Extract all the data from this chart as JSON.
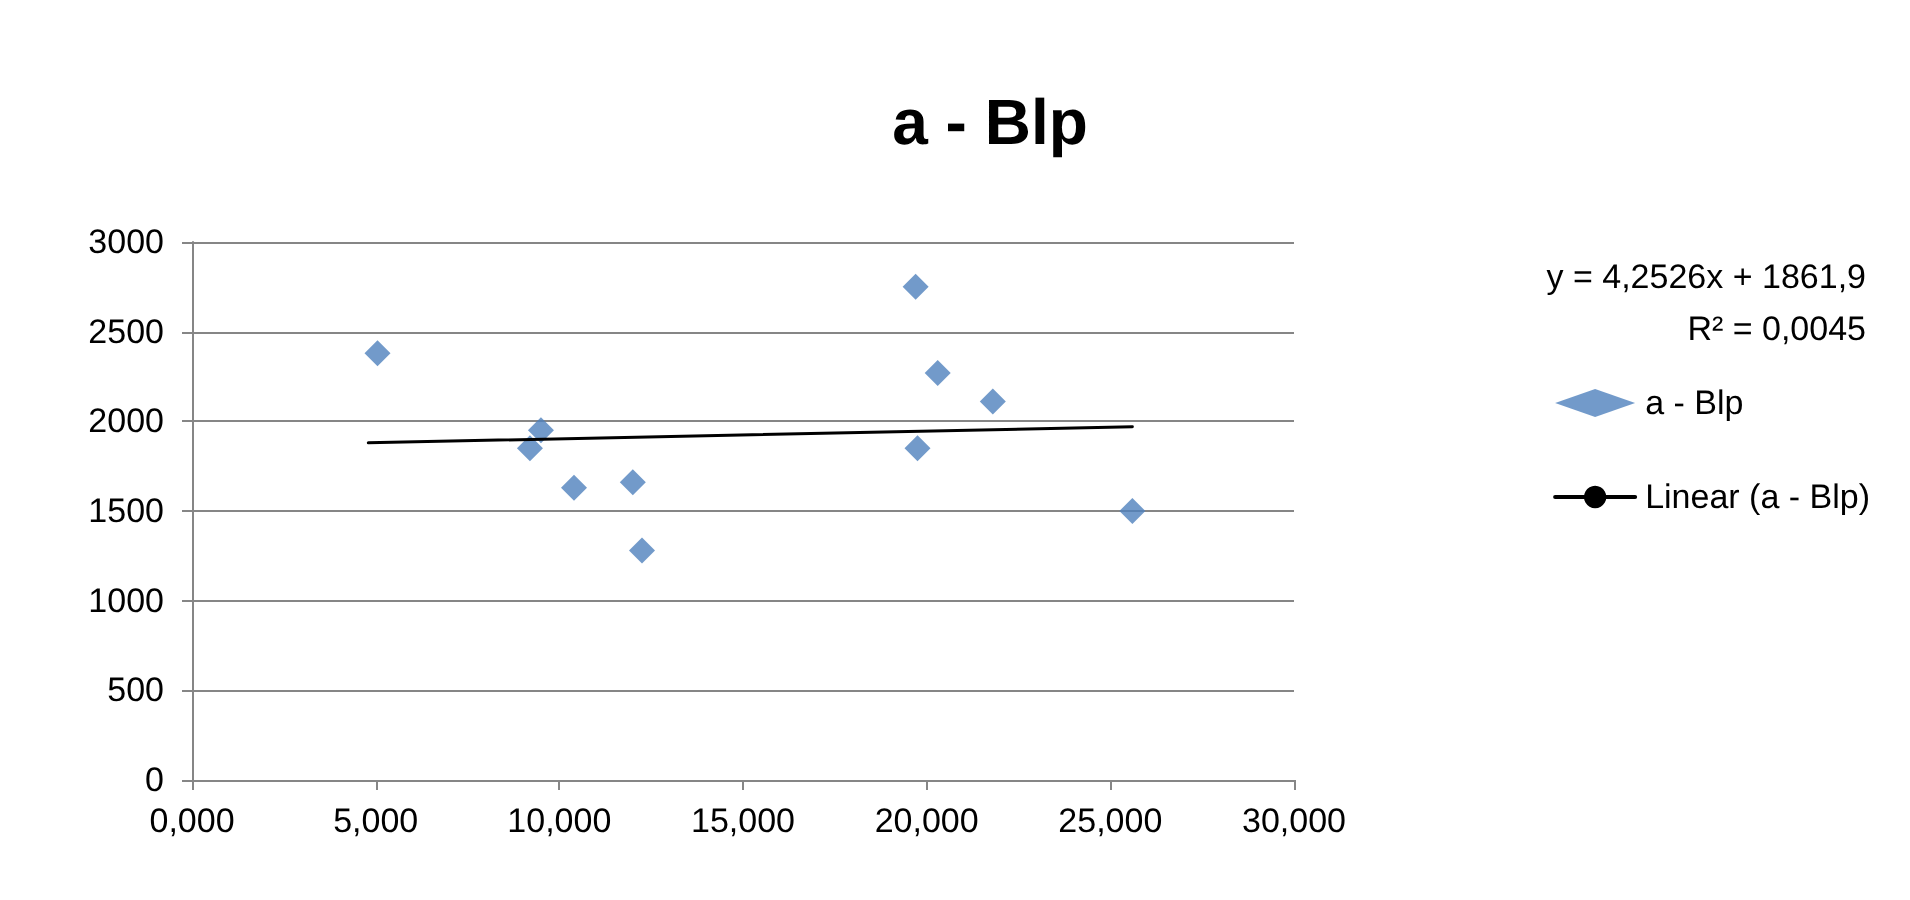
{
  "chart_data": {
    "type": "scatter",
    "title": "a - Blp",
    "annotations": [
      "y = 4,2526x + 1861,9",
      "R² = 0,0045"
    ],
    "xlim": [
      0,
      30
    ],
    "xticks": [
      {
        "value": 0,
        "label": "0,000"
      },
      {
        "value": 5,
        "label": "5,000"
      },
      {
        "value": 10,
        "label": "10,000"
      },
      {
        "value": 15,
        "label": "15,000"
      },
      {
        "value": 20,
        "label": "20,000"
      },
      {
        "value": 25,
        "label": "25,000"
      },
      {
        "value": 30,
        "label": "30,000"
      }
    ],
    "ylim": [
      0,
      3000
    ],
    "yticks": [
      0,
      500,
      1000,
      1500,
      2000,
      2500,
      3000
    ],
    "grid": "y",
    "legend": "right",
    "marker": "diamond",
    "series": [
      {
        "name": "a - Blp",
        "color": "#4f81bd",
        "x": [
          5.05,
          9.5,
          9.2,
          10.4,
          12.0,
          12.25,
          19.7,
          20.3,
          21.8,
          19.75,
          25.6
        ],
        "values": [
          2380,
          1950,
          1850,
          1630,
          1660,
          1280,
          2750,
          2270,
          2110,
          1850,
          1500
        ]
      },
      {
        "name": "Linear (a - Blp)",
        "type": "line",
        "marker": "none",
        "color": "#000000",
        "x": [
          4.8,
          25.6
        ],
        "values": [
          1880,
          1970
        ]
      }
    ]
  }
}
